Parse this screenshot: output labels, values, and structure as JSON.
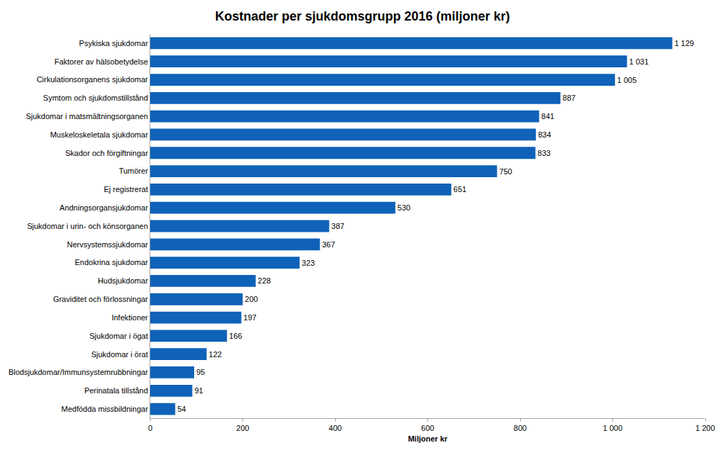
{
  "chart_data": {
    "type": "bar",
    "orientation": "horizontal",
    "title": "Kostnader per sjukdomsgrupp 2016 (miljoner kr)",
    "x_label": "Miljoner kr",
    "categories": [
      "Psykiska sjukdomar",
      "Faktorer av hälsobetydelse",
      "Cirkulationsorganens sjukdomar",
      "Symtom och sjukdomstillstånd",
      "Sjukdomar i matsmältningsorganen",
      "Muskeloskeletala sjukdomar",
      "Skador och förgiftningar",
      "Tumörer",
      "Ej registrerat",
      "Andningsorgansjukdomar",
      "Sjukdomar i urin- och könsorganen",
      "Nervsystemssjukdomar",
      "Endokrina sjukdomar",
      "Hudsjukdomar",
      "Graviditet och förlossningar",
      "Infektioner",
      "Sjukdomar i ögat",
      "Sjukdomar i örat",
      "Blodsjukdomar/Immunsystemrubbningar",
      "Perinatala tillstånd",
      "Medfödda missbildningar"
    ],
    "values": [
      1129,
      1031,
      1005,
      887,
      841,
      834,
      833,
      750,
      651,
      530,
      387,
      367,
      323,
      228,
      200,
      197,
      166,
      122,
      95,
      91,
      54
    ],
    "value_labels": [
      "1 129",
      "1 031",
      "1 005",
      "887",
      "841",
      "834",
      "833",
      "750",
      "651",
      "530",
      "387",
      "367",
      "323",
      "228",
      "200",
      "197",
      "166",
      "122",
      "95",
      "91",
      "54"
    ],
    "color": "#0f62b8",
    "xlim": [
      0,
      1200
    ],
    "xticks": [
      0,
      200,
      400,
      600,
      800,
      {
        "value": 1000,
        "label": "1 000"
      },
      {
        "value": 1200,
        "label": "1 200"
      }
    ],
    "grid": false,
    "data_labels": true
  }
}
